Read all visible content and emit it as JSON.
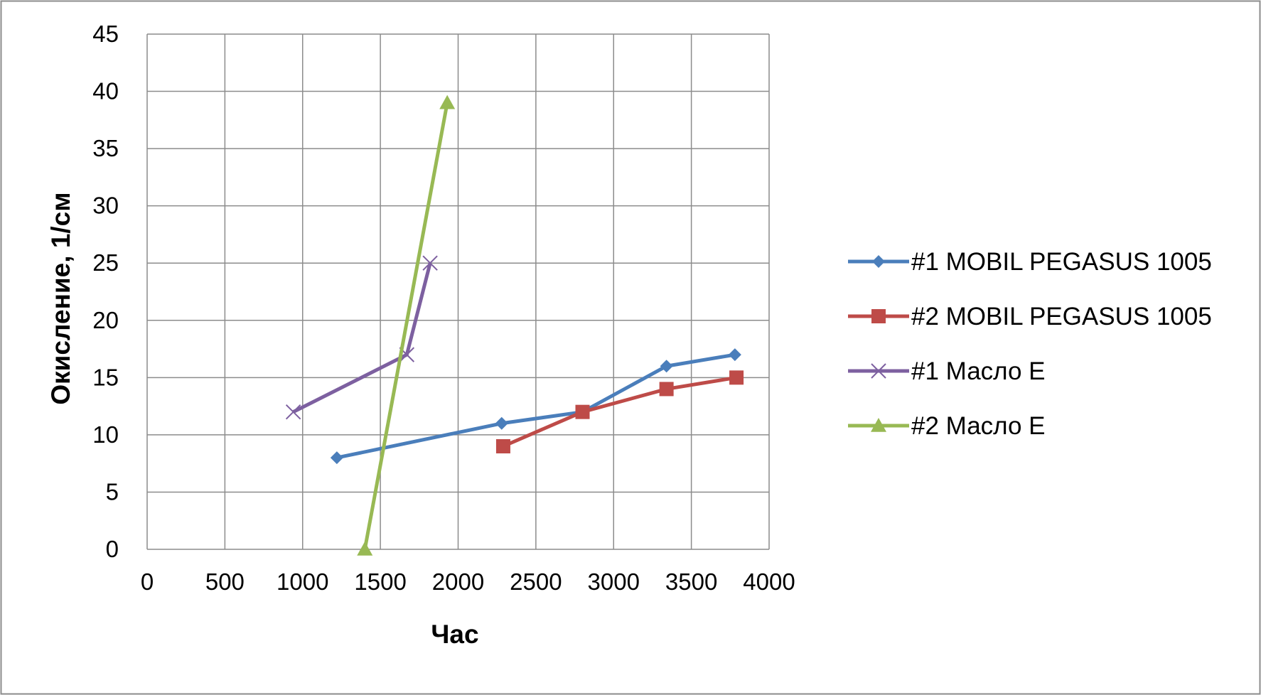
{
  "chart_data": {
    "type": "line",
    "title": "",
    "xlabel": "Час",
    "ylabel": "Окисление, 1/см",
    "xlim": [
      0,
      4000
    ],
    "ylim": [
      0,
      45
    ],
    "x_ticks": [
      "0",
      "500",
      "1000",
      "1500",
      "2000",
      "2500",
      "3000",
      "3500",
      "4000"
    ],
    "y_ticks": [
      "0",
      "5",
      "10",
      "15",
      "20",
      "25",
      "30",
      "35",
      "40",
      "45"
    ],
    "grid": true,
    "legend_position": "right",
    "series": [
      {
        "name": "#1 MOBIL PEGASUS 1005",
        "color": "#4a7ebb",
        "marker": "diamond",
        "x": [
          1220,
          2280,
          2800,
          3340,
          3780
        ],
        "y": [
          8,
          11,
          12,
          16,
          17
        ]
      },
      {
        "name": "#2 MOBIL PEGASUS 1005",
        "color": "#be4b48",
        "marker": "square",
        "x": [
          2290,
          2800,
          3340,
          3790
        ],
        "y": [
          9,
          12,
          14,
          15
        ]
      },
      {
        "name": "#1 Масло E",
        "color": "#7d60a0",
        "marker": "x",
        "x": [
          940,
          1670,
          1820
        ],
        "y": [
          12,
          17,
          25
        ]
      },
      {
        "name": "#2 Масло E",
        "color": "#98b954",
        "marker": "triangle",
        "x": [
          1400,
          1930
        ],
        "y": [
          0,
          39
        ]
      }
    ]
  }
}
